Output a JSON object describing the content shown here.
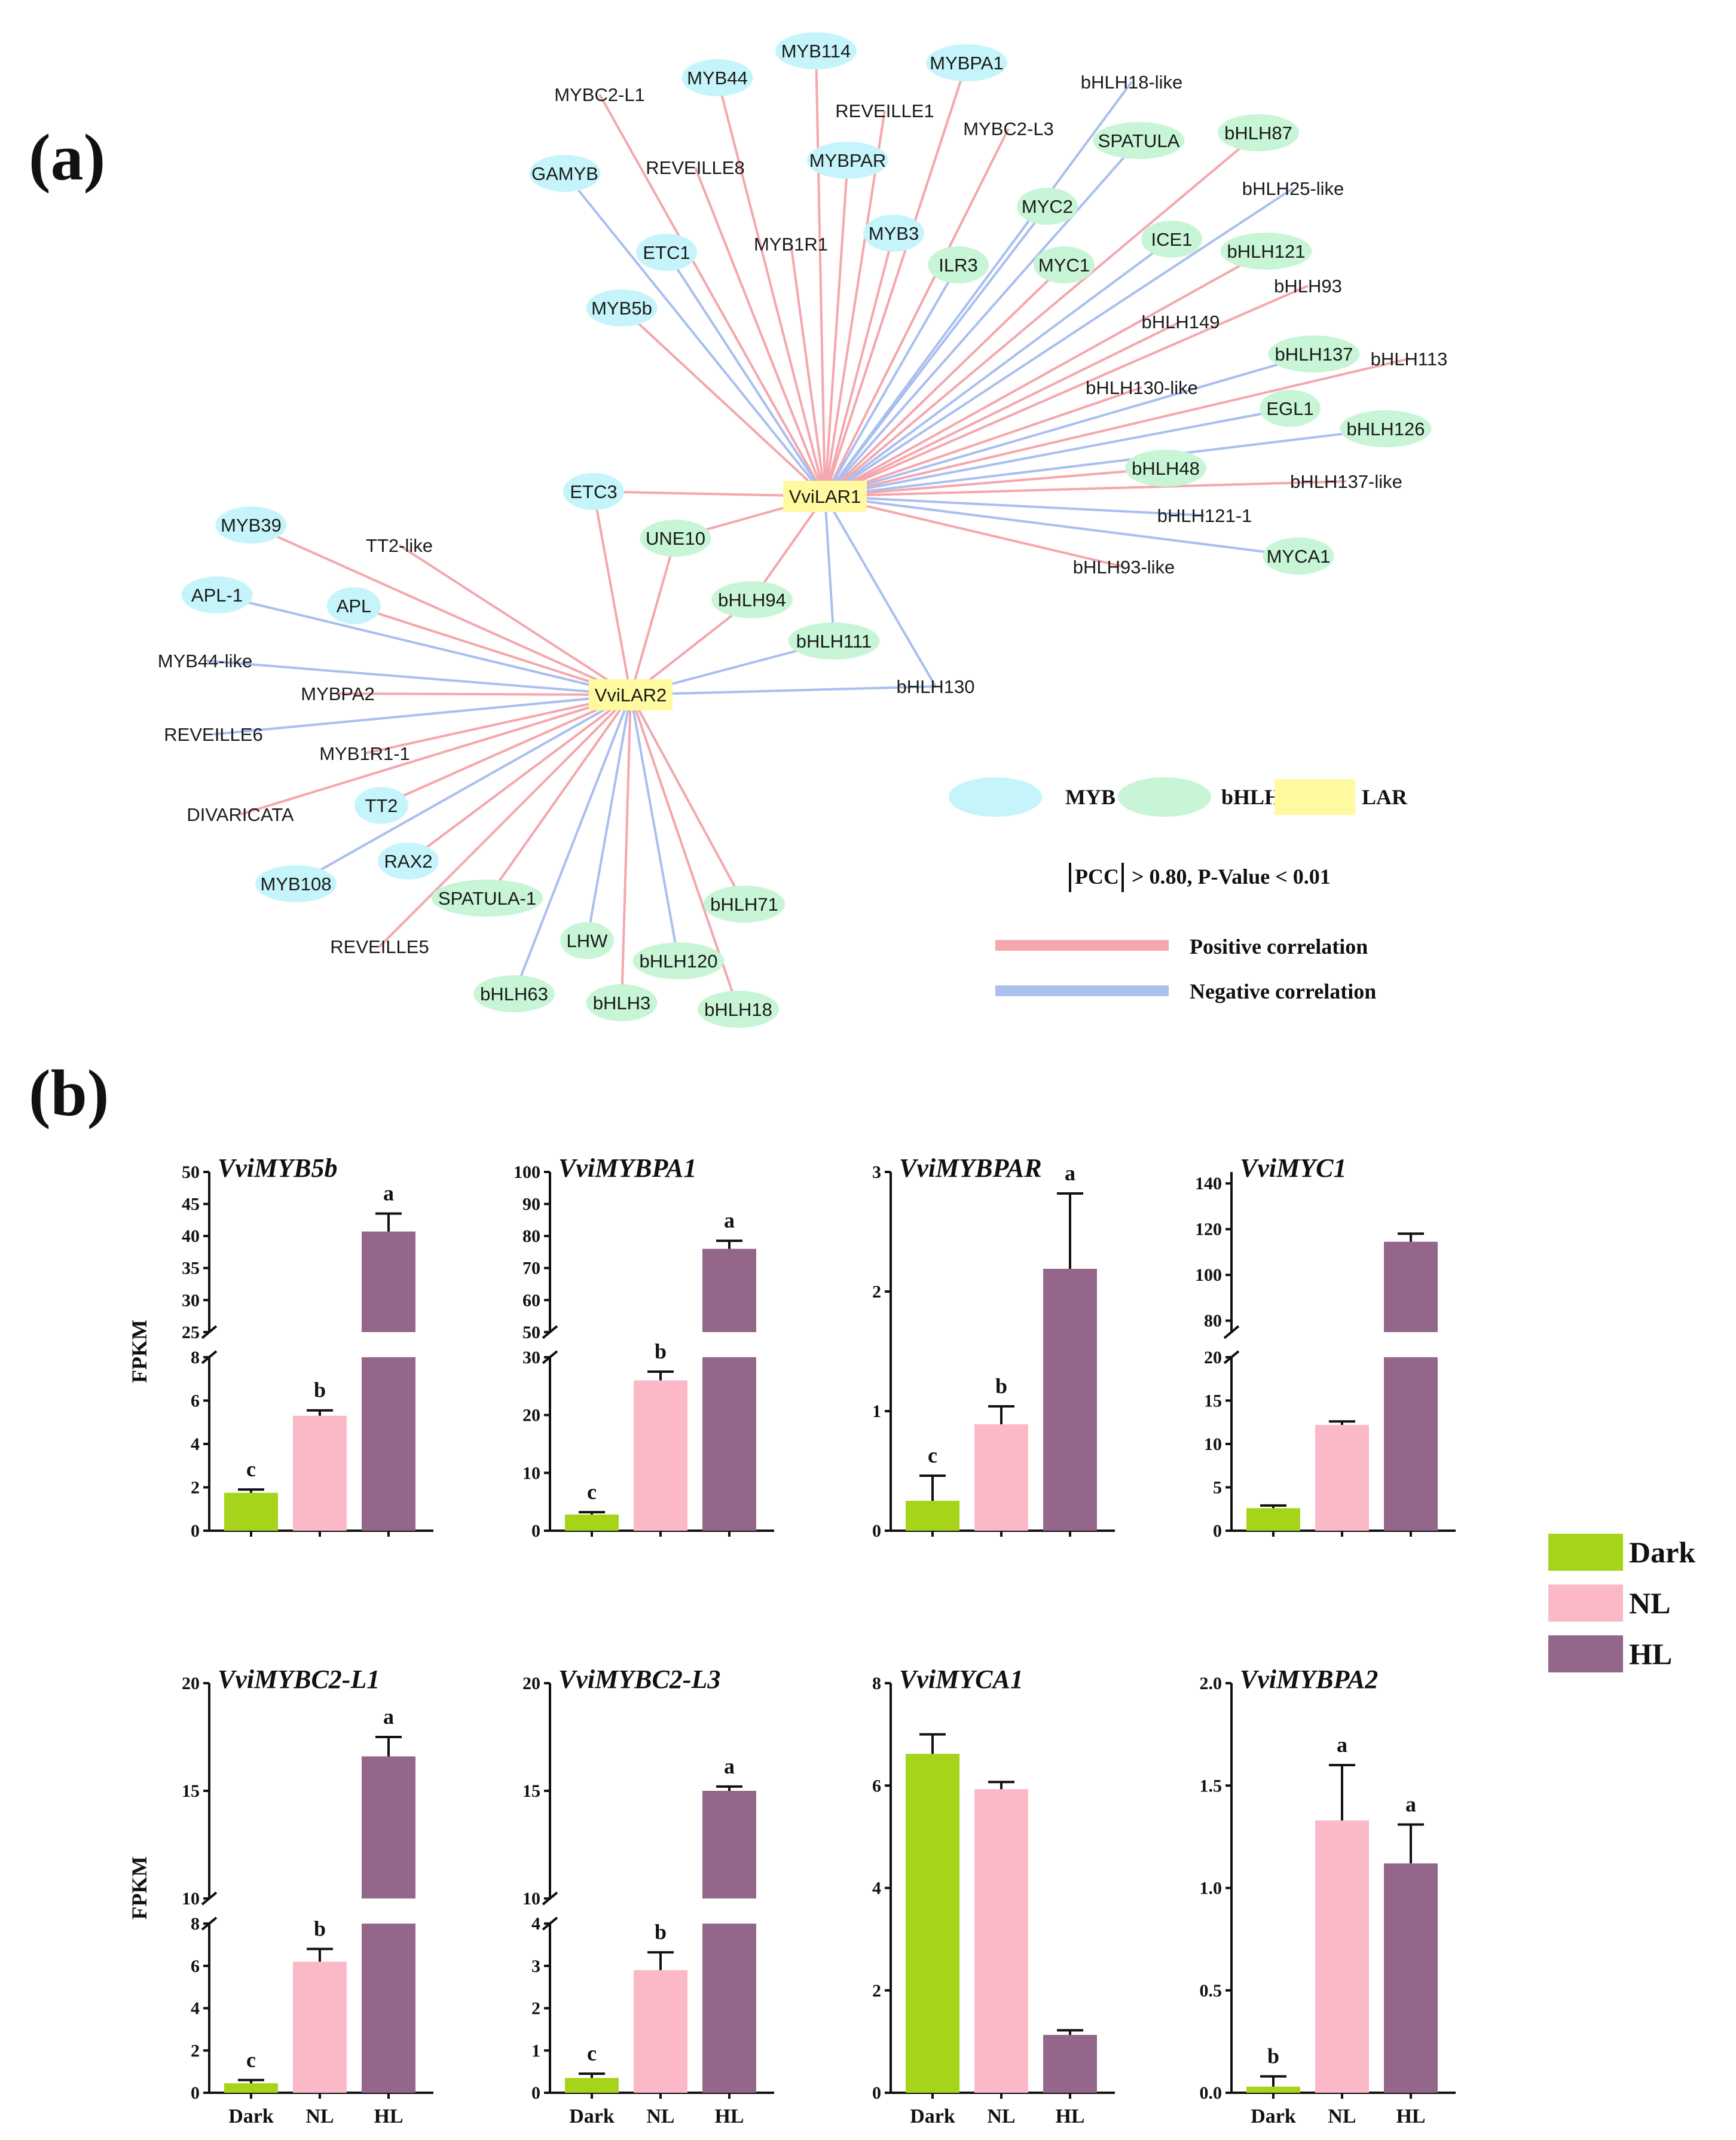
{
  "panel_a_label": "(a)",
  "panel_b_label": "(b)",
  "colors": {
    "myb": "#c5f5fb",
    "bhlh": "#c8f5d6",
    "lar": "#fffaa0",
    "positive": "#f4a7ad",
    "negative": "#a9bff0",
    "dark": "#a6d41a",
    "nl": "#fbb9c8",
    "hl": "#93668a"
  },
  "network": {
    "hubs": [
      {
        "id": "VviLAR1",
        "label": "VviLAR1"
      },
      {
        "id": "VviLAR2",
        "label": "VviLAR2"
      }
    ],
    "nodes": [
      {
        "label": "MYB114",
        "family": "MYB",
        "hub": "VviLAR1",
        "corr": "positive"
      },
      {
        "label": "MYBPA1",
        "family": "MYB",
        "hub": "VviLAR1",
        "corr": "positive"
      },
      {
        "label": "MYB44",
        "family": "MYB",
        "hub": "VviLAR1",
        "corr": "positive"
      },
      {
        "label": "MYBC2-L1",
        "family": "MYB",
        "hub": "VviLAR1",
        "corr": "positive"
      },
      {
        "label": "REVEILLE1",
        "family": "MYB",
        "hub": "VviLAR1",
        "corr": "positive"
      },
      {
        "label": "bHLH18-like",
        "family": "bHLH",
        "hub": "VviLAR1",
        "corr": "negative"
      },
      {
        "label": "MYBC2-L3",
        "family": "MYB",
        "hub": "VviLAR1",
        "corr": "positive"
      },
      {
        "label": "SPATULA",
        "family": "bHLH",
        "hub": "VviLAR1",
        "corr": "negative"
      },
      {
        "label": "bHLH87",
        "family": "bHLH",
        "hub": "VviLAR1",
        "corr": "positive"
      },
      {
        "label": "GAMYB",
        "family": "MYB",
        "hub": "VviLAR1",
        "corr": "negative"
      },
      {
        "label": "REVEILLE8",
        "family": "MYB",
        "hub": "VviLAR1",
        "corr": "positive"
      },
      {
        "label": "MYBPAR",
        "family": "MYB",
        "hub": "VviLAR1",
        "corr": "positive"
      },
      {
        "label": "bHLH25-like",
        "family": "bHLH",
        "hub": "VviLAR1",
        "corr": "negative"
      },
      {
        "label": "MYC2",
        "family": "bHLH",
        "hub": "VviLAR1",
        "corr": "negative"
      },
      {
        "label": "ETC1",
        "family": "MYB",
        "hub": "VviLAR1",
        "corr": "negative"
      },
      {
        "label": "MYB1R1",
        "family": "MYB",
        "hub": "VviLAR1",
        "corr": "positive"
      },
      {
        "label": "MYB3",
        "family": "MYB",
        "hub": "VviLAR1",
        "corr": "positive"
      },
      {
        "label": "ILR3",
        "family": "bHLH",
        "hub": "VviLAR1",
        "corr": "negative"
      },
      {
        "label": "MYC1",
        "family": "bHLH",
        "hub": "VviLAR1",
        "corr": "positive"
      },
      {
        "label": "ICE1",
        "family": "bHLH",
        "hub": "VviLAR1",
        "corr": "negative"
      },
      {
        "label": "bHLH121",
        "family": "bHLH",
        "hub": "VviLAR1",
        "corr": "positive"
      },
      {
        "label": "MYB5b",
        "family": "MYB",
        "hub": "VviLAR1",
        "corr": "positive"
      },
      {
        "label": "bHLH93",
        "family": "bHLH",
        "hub": "VviLAR1",
        "corr": "positive"
      },
      {
        "label": "bHLH149",
        "family": "bHLH",
        "hub": "VviLAR1",
        "corr": "positive"
      },
      {
        "label": "bHLH137",
        "family": "bHLH",
        "hub": "VviLAR1",
        "corr": "negative"
      },
      {
        "label": "bHLH113",
        "family": "bHLH",
        "hub": "VviLAR1",
        "corr": "positive"
      },
      {
        "label": "bHLH130-like",
        "family": "bHLH",
        "hub": "VviLAR1",
        "corr": "positive"
      },
      {
        "label": "EGL1",
        "family": "bHLH",
        "hub": "VviLAR1",
        "corr": "negative"
      },
      {
        "label": "bHLH126",
        "family": "bHLH",
        "hub": "VviLAR1",
        "corr": "negative"
      },
      {
        "label": "bHLH48",
        "family": "bHLH",
        "hub": "VviLAR1",
        "corr": "positive"
      },
      {
        "label": "bHLH137-like",
        "family": "bHLH",
        "hub": "VviLAR1",
        "corr": "positive"
      },
      {
        "label": "bHLH121-1",
        "family": "bHLH",
        "hub": "VviLAR1",
        "corr": "negative"
      },
      {
        "label": "MYCA1",
        "family": "bHLH",
        "hub": "VviLAR1",
        "corr": "negative"
      },
      {
        "label": "bHLH93-like",
        "family": "bHLH",
        "hub": "VviLAR1",
        "corr": "positive"
      },
      {
        "label": "ETC3",
        "family": "MYB",
        "hub": "VviLAR1",
        "corr": "positive"
      },
      {
        "label": "UNE10",
        "family": "bHLH",
        "hub": "VviLAR1",
        "corr": "positive"
      },
      {
        "label": "bHLH94",
        "family": "bHLH",
        "hub": "VviLAR1",
        "corr": "positive"
      },
      {
        "label": "bHLH111",
        "family": "bHLH",
        "hub": "VviLAR1",
        "corr": "negative"
      },
      {
        "label": "bHLH130",
        "family": "bHLH",
        "hub": "VviLAR1",
        "corr": "negative"
      },
      {
        "label": "MYB39",
        "family": "MYB",
        "hub": "VviLAR2",
        "corr": "positive"
      },
      {
        "label": "TT2-like",
        "family": "MYB",
        "hub": "VviLAR2",
        "corr": "positive"
      },
      {
        "label": "APL-1",
        "family": "MYB",
        "hub": "VviLAR2",
        "corr": "negative"
      },
      {
        "label": "APL",
        "family": "MYB",
        "hub": "VviLAR2",
        "corr": "positive"
      },
      {
        "label": "MYB44-like",
        "family": "MYB",
        "hub": "VviLAR2",
        "corr": "negative"
      },
      {
        "label": "MYBPA2",
        "family": "MYB",
        "hub": "VviLAR2",
        "corr": "positive"
      },
      {
        "label": "REVEILLE6",
        "family": "MYB",
        "hub": "VviLAR2",
        "corr": "negative"
      },
      {
        "label": "MYB1R1-1",
        "family": "MYB",
        "hub": "VviLAR2",
        "corr": "positive"
      },
      {
        "label": "DIVARICATA",
        "family": "MYB",
        "hub": "VviLAR2",
        "corr": "positive"
      },
      {
        "label": "TT2",
        "family": "MYB",
        "hub": "VviLAR2",
        "corr": "positive"
      },
      {
        "label": "MYB108",
        "family": "MYB",
        "hub": "VviLAR2",
        "corr": "negative"
      },
      {
        "label": "RAX2",
        "family": "MYB",
        "hub": "VviLAR2",
        "corr": "positive"
      },
      {
        "label": "SPATULA-1",
        "family": "bHLH",
        "hub": "VviLAR2",
        "corr": "positive"
      },
      {
        "label": "REVEILLE5",
        "family": "MYB",
        "hub": "VviLAR2",
        "corr": "positive"
      },
      {
        "label": "LHW",
        "family": "bHLH",
        "hub": "VviLAR2",
        "corr": "negative"
      },
      {
        "label": "bHLH63",
        "family": "bHLH",
        "hub": "VviLAR2",
        "corr": "negative"
      },
      {
        "label": "bHLH3",
        "family": "bHLH",
        "hub": "VviLAR2",
        "corr": "positive"
      },
      {
        "label": "bHLH120",
        "family": "bHLH",
        "hub": "VviLAR2",
        "corr": "negative"
      },
      {
        "label": "bHLH18",
        "family": "bHLH",
        "hub": "VviLAR2",
        "corr": "positive"
      },
      {
        "label": "bHLH71",
        "family": "bHLH",
        "hub": "VviLAR2",
        "corr": "positive"
      },
      {
        "label": "ETC3",
        "family": "MYB",
        "hub": "VviLAR2",
        "corr": "positive"
      },
      {
        "label": "UNE10",
        "family": "bHLH",
        "hub": "VviLAR2",
        "corr": "positive"
      },
      {
        "label": "bHLH94",
        "family": "bHLH",
        "hub": "VviLAR2",
        "corr": "positive"
      },
      {
        "label": "bHLH111",
        "family": "bHLH",
        "hub": "VviLAR2",
        "corr": "negative"
      },
      {
        "label": "bHLH130",
        "family": "bHLH",
        "hub": "VviLAR2",
        "corr": "negative"
      }
    ],
    "legend": {
      "myb": "MYB",
      "bhlh": "bHLH",
      "lar": "LAR",
      "threshold_prefix": "|PCC|",
      "threshold_rest": " > 0.80, P-Value < 0.01",
      "positive": "Positive correlation",
      "negative": "Negative correlation"
    }
  },
  "bar_legend": [
    "Dark",
    "NL",
    "HL"
  ],
  "ylabel": "FPKM",
  "chart_data": [
    {
      "type": "bar",
      "title": "VviMYB5b",
      "categories": [
        "Dark",
        "NL",
        "HL"
      ],
      "values": [
        1.75,
        5.3,
        40.7
      ],
      "errors": [
        0.15,
        0.25,
        2.8
      ],
      "letters": [
        "c",
        "b",
        "a"
      ],
      "ylabel": "FPKM",
      "broken_axis": {
        "lower": [
          0,
          8
        ],
        "upper": [
          25,
          50
        ],
        "lower_ticks": [
          0,
          2,
          4,
          6,
          8
        ],
        "upper_ticks": [
          25,
          30,
          35,
          40,
          45,
          50
        ]
      }
    },
    {
      "type": "bar",
      "title": "VviMYBPA1",
      "categories": [
        "Dark",
        "NL",
        "HL"
      ],
      "values": [
        2.8,
        26,
        76
      ],
      "errors": [
        0.4,
        1.5,
        2.5
      ],
      "letters": [
        "c",
        "b",
        "a"
      ],
      "ylabel": "",
      "broken_axis": {
        "lower": [
          0,
          30
        ],
        "upper": [
          50,
          100
        ],
        "lower_ticks": [
          0,
          10,
          20,
          30
        ],
        "upper_ticks": [
          50,
          60,
          70,
          80,
          90,
          100
        ]
      }
    },
    {
      "type": "bar",
      "title": "VviMYBPAR",
      "categories": [
        "Dark",
        "NL",
        "HL"
      ],
      "values": [
        0.25,
        0.89,
        2.19
      ],
      "errors": [
        0.21,
        0.15,
        0.63
      ],
      "letters": [
        "c",
        "b",
        "a"
      ],
      "ylabel": "",
      "ylim": [
        0,
        3
      ],
      "ticks": [
        0,
        1,
        2,
        3
      ]
    },
    {
      "type": "bar",
      "title": "VviMYC1",
      "categories": [
        "Dark",
        "NL",
        "HL"
      ],
      "values": [
        2.6,
        12.2,
        114.5
      ],
      "errors": [
        0.3,
        0.4,
        3.5
      ],
      "letters": [
        "",
        "",
        ""
      ],
      "ylabel": "",
      "broken_axis": {
        "lower": [
          0,
          20
        ],
        "upper": [
          75,
          145
        ],
        "lower_ticks": [
          0,
          5,
          10,
          15,
          20
        ],
        "upper_ticks": [
          80,
          100,
          120,
          140
        ]
      }
    },
    {
      "type": "bar",
      "title": "VviMYBC2-L1",
      "categories": [
        "Dark",
        "NL",
        "HL"
      ],
      "values": [
        0.45,
        6.2,
        16.6
      ],
      "errors": [
        0.15,
        0.6,
        0.9
      ],
      "letters": [
        "c",
        "b",
        "a"
      ],
      "ylabel": "FPKM",
      "broken_axis": {
        "lower": [
          0,
          8
        ],
        "upper": [
          10,
          20
        ],
        "lower_ticks": [
          0,
          2,
          4,
          6,
          8
        ],
        "upper_ticks": [
          10,
          15,
          20
        ]
      }
    },
    {
      "type": "bar",
      "title": "VviMYBC2-L3",
      "categories": [
        "Dark",
        "NL",
        "HL"
      ],
      "values": [
        0.35,
        2.9,
        15
      ],
      "errors": [
        0.1,
        0.42,
        0.2
      ],
      "letters": [
        "c",
        "b",
        "a"
      ],
      "ylabel": "",
      "broken_axis": {
        "lower": [
          0,
          4
        ],
        "upper": [
          10,
          20
        ],
        "lower_ticks": [
          0,
          1,
          2,
          3,
          4
        ],
        "upper_ticks": [
          10,
          15,
          20
        ]
      }
    },
    {
      "type": "bar",
      "title": "VviMYCA1",
      "categories": [
        "Dark",
        "NL",
        "HL"
      ],
      "values": [
        6.62,
        5.93,
        1.13
      ],
      "errors": [
        0.38,
        0.14,
        0.09
      ],
      "letters": [
        "",
        "",
        ""
      ],
      "ylabel": "",
      "ylim": [
        0,
        8
      ],
      "ticks": [
        0,
        2,
        4,
        6,
        8
      ]
    },
    {
      "type": "bar",
      "title": "VviMYBPA2",
      "categories": [
        "Dark",
        "NL",
        "HL"
      ],
      "values": [
        0.03,
        1.33,
        1.12
      ],
      "errors": [
        0.05,
        0.27,
        0.19
      ],
      "letters": [
        "b",
        "a",
        "a"
      ],
      "ylabel": "",
      "ylim": [
        0,
        2
      ],
      "ticks": [
        0,
        0.5,
        1.0,
        1.5,
        2.0
      ],
      "tick_labels": [
        "0.0",
        "0.5",
        "1.0",
        "1.5",
        "2.0"
      ]
    }
  ]
}
